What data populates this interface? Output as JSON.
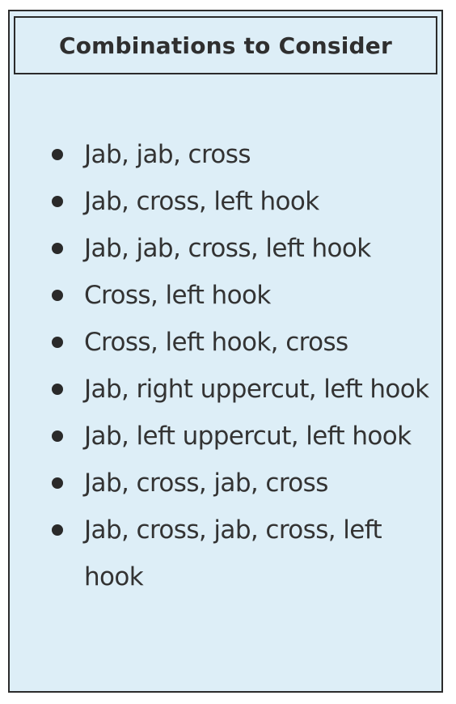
{
  "box": {
    "title": "Combinations to Consider",
    "items": [
      "Jab, jab, cross",
      "Jab, cross, left hook",
      "Jab, jab, cross, left hook",
      "Cross, left hook",
      "Cross, left hook, cross",
      "Jab, right uppercut, left hook",
      "Jab, left uppercut, left hook",
      "Jab, cross, jab, cross",
      "Jab, cross, jab, cross, left hook"
    ]
  }
}
